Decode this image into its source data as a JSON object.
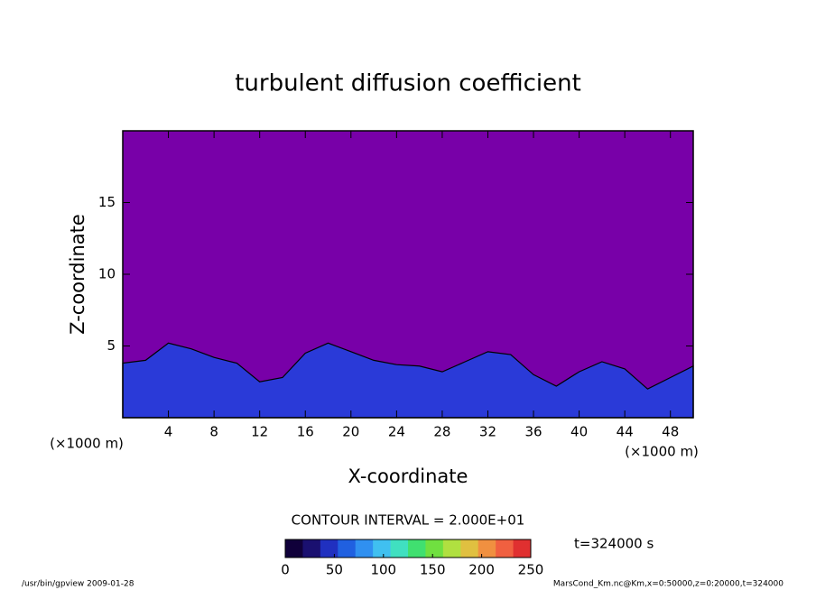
{
  "chart_data": {
    "type": "contour",
    "title": "turbulent diffusion coefficient",
    "x_label": "X-coordinate",
    "y_label": "Z-coordinate",
    "x_unit": "(×1000 m)",
    "xlim": [
      0,
      50
    ],
    "xticks": [
      4,
      8,
      12,
      16,
      20,
      24,
      28,
      32,
      36,
      40,
      44,
      48
    ],
    "ylim": [
      0,
      20
    ],
    "yticks": [
      5,
      10,
      15
    ],
    "background_color": "#7800a8",
    "layer_color": "#2a3ad8",
    "x": [
      0,
      2,
      4,
      6,
      8,
      10,
      12,
      14,
      16,
      18,
      20,
      22,
      24,
      26,
      28,
      30,
      32,
      34,
      36,
      38,
      40,
      42,
      44,
      46,
      48,
      50
    ],
    "layer_top": [
      3.8,
      4,
      5.2,
      4.8,
      4.2,
      3.8,
      2.5,
      2.8,
      4.5,
      5.2,
      4.6,
      4,
      3.7,
      3.6,
      3.2,
      3.9,
      4.6,
      4.4,
      3,
      2.2,
      3.2,
      3.9,
      3.4,
      2,
      2.8,
      3.6
    ],
    "contour_interval": "CONTOUR INTERVAL = 2.000E+01",
    "time_label": "t=324000 s",
    "colorbar": {
      "clim": [
        0,
        250
      ],
      "cticks": [
        0,
        50,
        100,
        150,
        200,
        250
      ],
      "colors": [
        "#10003a",
        "#1a1070",
        "#2030c0",
        "#2060e0",
        "#3090f0",
        "#40c0f0",
        "#40e0c0",
        "#40e070",
        "#70e040",
        "#b0e040",
        "#e0c040",
        "#f09040",
        "#f06040",
        "#e03030"
      ]
    },
    "footer_left": "/usr/bin/gpview  2009-01-28",
    "footer_right": "MarsCond_Km.nc@Km,x=0:50000,z=0:20000,t=324000"
  }
}
